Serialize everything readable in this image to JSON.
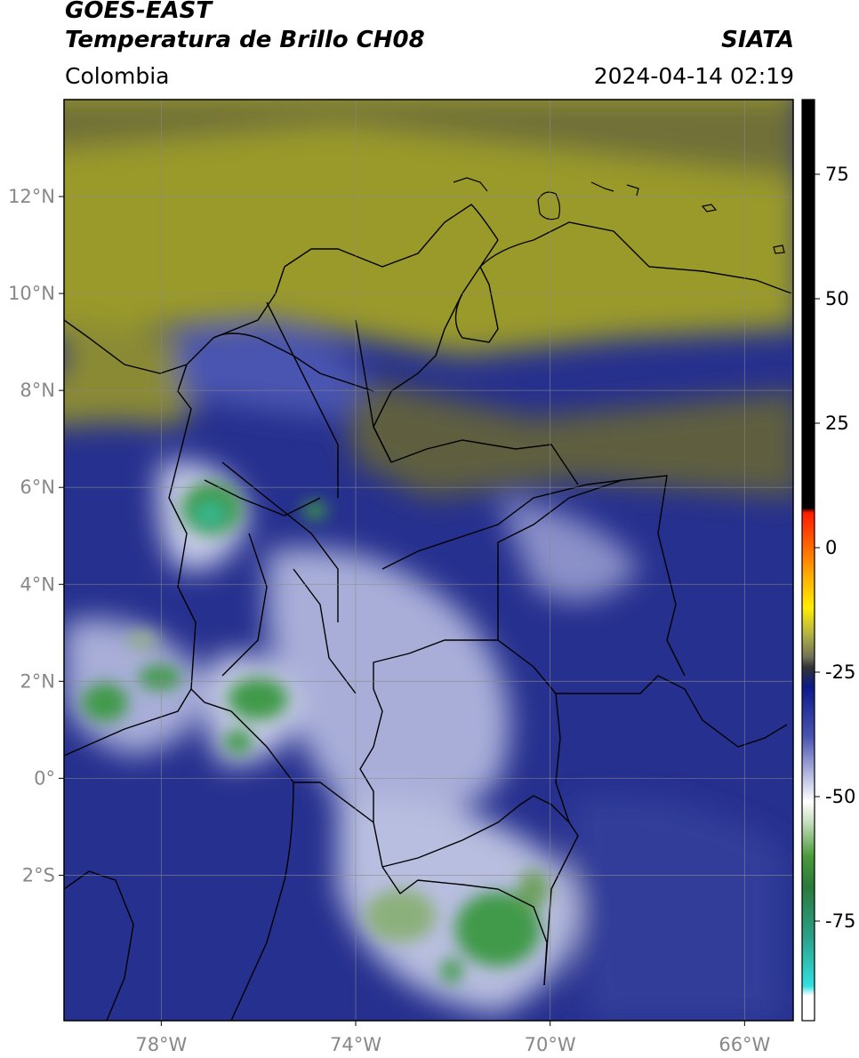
{
  "header": {
    "satellite": "GOES-EAST",
    "product": "Temperatura de Brillo CH08",
    "region": "Colombia",
    "agency": "SIATA",
    "timestamp": "2024-04-14 02:19"
  },
  "map": {
    "lon_range": [
      -80,
      -65
    ],
    "lat_range": [
      -5,
      14
    ],
    "lon_ticks": [
      {
        "value": -78,
        "label": "78°W"
      },
      {
        "value": -74,
        "label": "74°W"
      },
      {
        "value": -70,
        "label": "70°W"
      },
      {
        "value": -66,
        "label": "66°W"
      }
    ],
    "lat_ticks": [
      {
        "value": 12,
        "label": "12°N"
      },
      {
        "value": 10,
        "label": "10°N"
      },
      {
        "value": 8,
        "label": "8°N"
      },
      {
        "value": 6,
        "label": "6°N"
      },
      {
        "value": 4,
        "label": "4°N"
      },
      {
        "value": 2,
        "label": "2°N"
      },
      {
        "value": 0,
        "label": "0°"
      },
      {
        "value": -2,
        "label": "2°S"
      }
    ],
    "gridlines": true,
    "colors": {
      "warm_dry": "#9c9c2c",
      "mid": "#63633f",
      "cold": "#1f2d8c",
      "cloud": "#c9cde8",
      "deep_convection": "#3f9a4a"
    }
  },
  "colorbar": {
    "range": [
      -95,
      90
    ],
    "ticks": [
      {
        "value": 75,
        "label": "75"
      },
      {
        "value": 50,
        "label": "50"
      },
      {
        "value": 25,
        "label": "25"
      },
      {
        "value": 0,
        "label": "0"
      },
      {
        "value": -25,
        "label": "-25"
      },
      {
        "value": -50,
        "label": "-50"
      },
      {
        "value": -75,
        "label": "-75"
      }
    ],
    "stops": [
      {
        "value": 90,
        "color": "#000000"
      },
      {
        "value": 8,
        "color": "#000000"
      },
      {
        "value": 7,
        "color": "#ff1a00"
      },
      {
        "value": 0,
        "color": "#ff6a00"
      },
      {
        "value": -6,
        "color": "#ffb000"
      },
      {
        "value": -12,
        "color": "#ffee00"
      },
      {
        "value": -17,
        "color": "#b8b840"
      },
      {
        "value": -22,
        "color": "#707058"
      },
      {
        "value": -24,
        "color": "#333333"
      },
      {
        "value": -28,
        "color": "#0a1a8a"
      },
      {
        "value": -38,
        "color": "#4a54b0"
      },
      {
        "value": -47,
        "color": "#c8cce8"
      },
      {
        "value": -51,
        "color": "#ffffff"
      },
      {
        "value": -55,
        "color": "#c8e0c0"
      },
      {
        "value": -62,
        "color": "#4a9a3a"
      },
      {
        "value": -68,
        "color": "#2a7a3a"
      },
      {
        "value": -78,
        "color": "#2aa088"
      },
      {
        "value": -88,
        "color": "#30e0e0"
      },
      {
        "value": -90,
        "color": "#ffffff"
      },
      {
        "value": -95,
        "color": "#ffffff"
      }
    ]
  }
}
